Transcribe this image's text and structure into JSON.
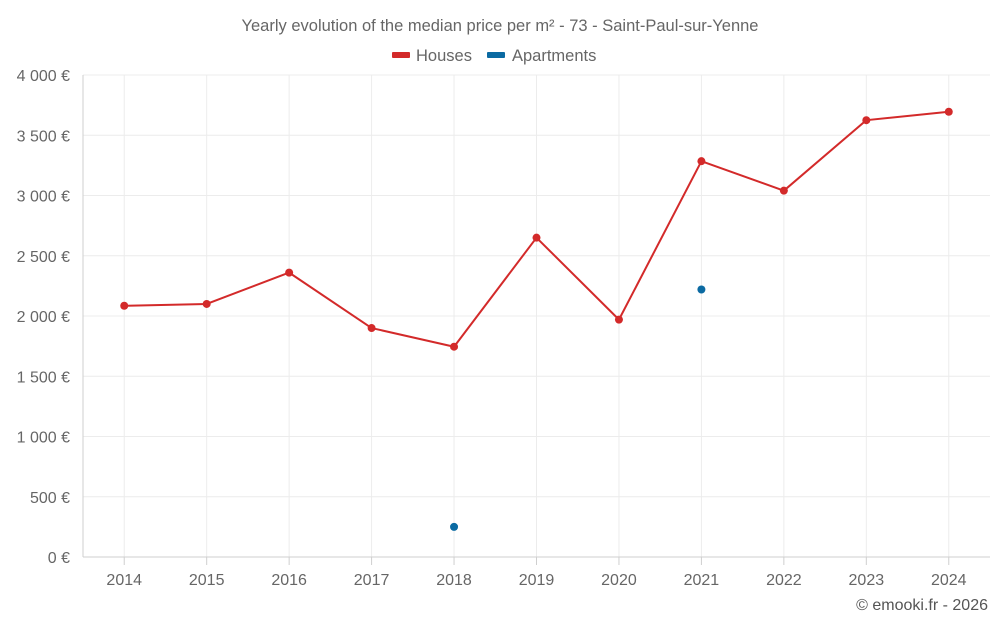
{
  "chart_data": {
    "type": "line",
    "title": "Yearly evolution of the median price per m² - 73 - Saint-Paul-sur-Yenne",
    "categories": [
      "2014",
      "2015",
      "2016",
      "2017",
      "2018",
      "2019",
      "2020",
      "2021",
      "2022",
      "2023",
      "2024"
    ],
    "series": [
      {
        "name": "Houses",
        "color": "#d32a2a",
        "values": [
          2085,
          2100,
          2360,
          1900,
          1745,
          2650,
          1970,
          3285,
          3040,
          3625,
          3695
        ]
      },
      {
        "name": "Apartments",
        "color": "#0b6aa2",
        "values": [
          null,
          null,
          null,
          null,
          250,
          null,
          null,
          2220,
          null,
          null,
          null
        ]
      }
    ],
    "ylim": [
      0,
      4000
    ],
    "yticks": [
      0,
      500,
      1000,
      1500,
      2000,
      2500,
      3000,
      3500,
      4000
    ],
    "ytick_labels": [
      "0 €",
      "500 €",
      "1 000 €",
      "1 500 €",
      "2 000 €",
      "2 500 €",
      "3 000 €",
      "3 500 €",
      "4 000 €"
    ],
    "xlabel": "",
    "ylabel": "",
    "grid": true,
    "legend_position": "top-center"
  },
  "credit": "© emooki.fr - 2026"
}
